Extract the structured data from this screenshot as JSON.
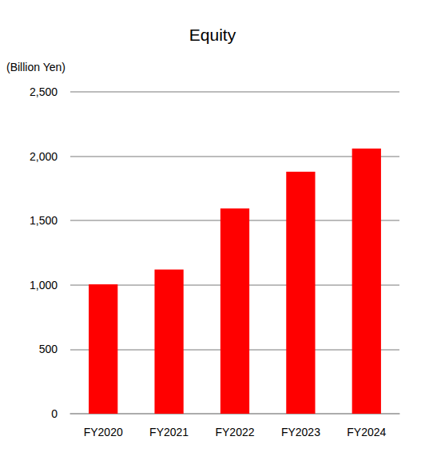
{
  "chart_data": {
    "type": "bar",
    "title": "Equity",
    "y_label": "(Billion Yen)",
    "categories": [
      "FY2020",
      "FY2021",
      "FY2022",
      "FY2023",
      "FY2024"
    ],
    "values": [
      1005,
      1120,
      1595,
      1880,
      2060
    ],
    "color": "#ff0000",
    "ylim": [
      0,
      2500
    ],
    "yticks": [
      0,
      500,
      {
        "value": 1000,
        "label": "1,000"
      },
      {
        "value": 1500,
        "label": "1,500"
      },
      {
        "value": 2000,
        "label": "2,000"
      },
      {
        "value": 2500,
        "label": "2,500"
      }
    ],
    "grid": true
  }
}
